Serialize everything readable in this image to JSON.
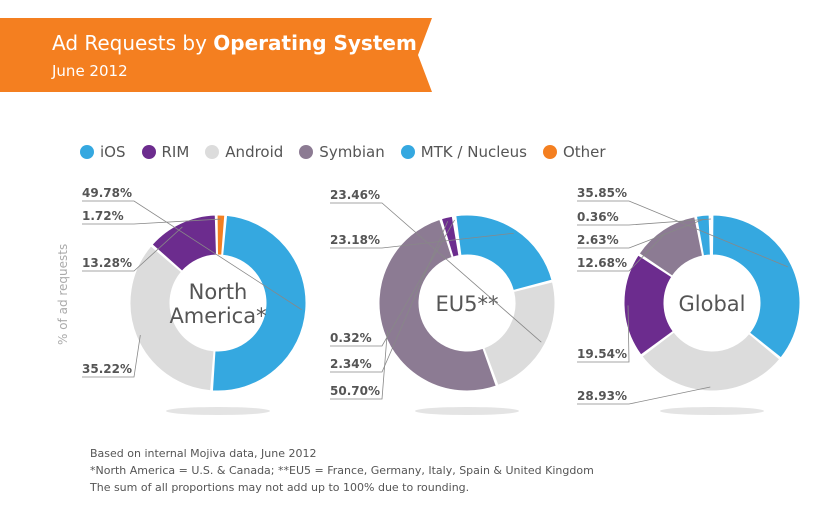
{
  "header": {
    "title_prefix": "Ad Requests by ",
    "title_bold": "Operating System",
    "subtitle": "June 2012",
    "color": "#f47f20"
  },
  "footnote": {
    "line1": "Based on internal Mojiva data, June 2012",
    "line2": "*North America = U.S. & Canada; **EU5 = France, Germany, Italy, Spain & United Kingdom",
    "line3": "The sum of all proportions may not add up to 100% due to rounding."
  },
  "chart_data": {
    "type": "donut",
    "ylabel": "% of ad requests",
    "legend": [
      {
        "name": "iOS",
        "color": "#35a8e0"
      },
      {
        "name": "RIM",
        "color": "#6c2c8e"
      },
      {
        "name": "Android",
        "color": "#dcdcdc"
      },
      {
        "name": "Symbian",
        "color": "#8c7b93"
      },
      {
        "name": "MTK / Nucleus",
        "color": "#35a8e0"
      },
      {
        "name": "Other",
        "color": "#f47f20"
      }
    ],
    "charts": [
      {
        "name": "North America*",
        "center_lines": [
          "North",
          "America*"
        ],
        "slices": [
          {
            "series": "iOS",
            "value": 49.78,
            "label": "49.78%"
          },
          {
            "series": "Android",
            "value": 35.22,
            "label": "35.22%"
          },
          {
            "series": "RIM",
            "value": 13.28,
            "label": "13.28%"
          },
          {
            "series": "Other",
            "value": 1.72,
            "label": "1.72%"
          }
        ]
      },
      {
        "name": "EU5**",
        "center_lines": [
          "EU5**"
        ],
        "slices": [
          {
            "series": "Symbian",
            "value": 50.7,
            "label": "50.70%"
          },
          {
            "series": "RIM",
            "value": 2.34,
            "label": "2.34%"
          },
          {
            "series": "Other",
            "value": 0.32,
            "label": "0.32%"
          },
          {
            "series": "iOS",
            "value": 23.18,
            "label": "23.18%"
          },
          {
            "series": "Android",
            "value": 23.46,
            "label": "23.46%"
          }
        ]
      },
      {
        "name": "Global",
        "center_lines": [
          "Global"
        ],
        "slices": [
          {
            "series": "iOS",
            "value": 35.85,
            "label": "35.85%"
          },
          {
            "series": "Android",
            "value": 28.93,
            "label": "28.93%"
          },
          {
            "series": "RIM",
            "value": 19.54,
            "label": "19.54%"
          },
          {
            "series": "Symbian",
            "value": 12.68,
            "label": "12.68%"
          },
          {
            "series": "MTK / Nucleus",
            "value": 2.63,
            "label": "2.63%"
          },
          {
            "series": "Other",
            "value": 0.36,
            "label": "0.36%"
          }
        ]
      }
    ]
  }
}
